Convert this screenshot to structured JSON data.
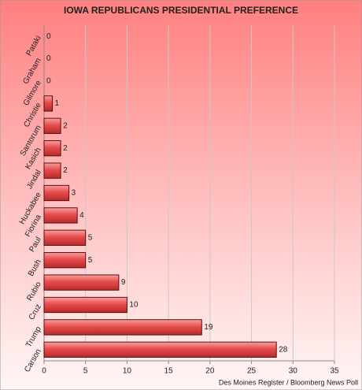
{
  "chart_data": {
    "type": "hbar",
    "title": "IOWA REPUBLICANS PRESIDENTIAL PREFERENCE",
    "categories": [
      "Pataki",
      "Graham",
      "Gilmore",
      "Christie",
      "Santorum",
      "Kasich",
      "Jindal",
      "Huckabee",
      "Fiorina",
      "Paul",
      "Bush",
      "Rubio",
      "Cruz",
      "Trump",
      "Carson"
    ],
    "values": [
      0,
      0,
      0,
      1,
      2,
      2,
      2,
      3,
      4,
      5,
      5,
      9,
      10,
      19,
      28
    ],
    "color": "#e84c4c",
    "xlim": [
      0,
      35
    ],
    "xticks": [
      0,
      5,
      10,
      15,
      20,
      25,
      30,
      35
    ],
    "grid": true,
    "source": "Des Moines Register / Bloomberg News Poll"
  }
}
